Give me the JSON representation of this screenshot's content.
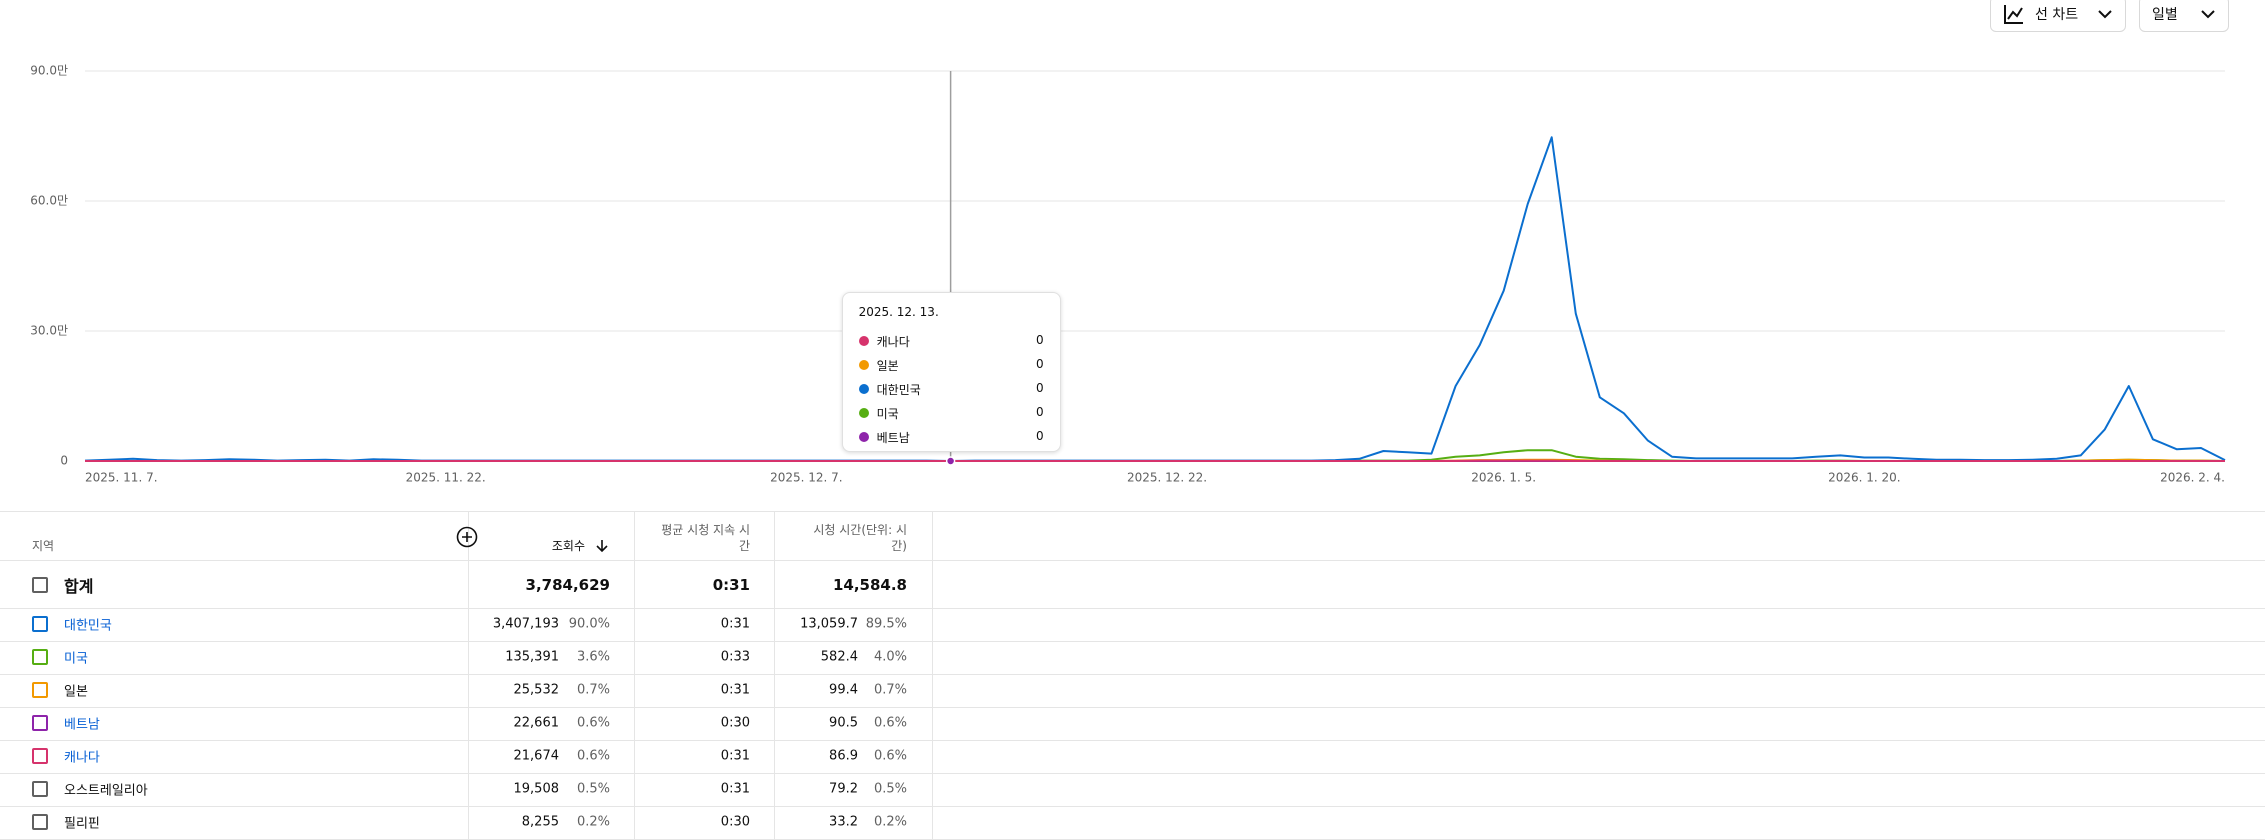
{
  "controls": {
    "chart_type": "선 차트",
    "period": "일별"
  },
  "chart_data": {
    "type": "line",
    "x": [
      "2025. 11. 7.",
      "2025. 11. 8.",
      "2025. 11. 9.",
      "2025. 11. 10.",
      "2025. 11. 11.",
      "2025. 11. 12.",
      "2025. 11. 13.",
      "2025. 11. 14.",
      "2025. 11. 15.",
      "2025. 11. 16.",
      "2025. 11. 17.",
      "2025. 11. 18.",
      "2025. 11. 19.",
      "2025. 11. 20.",
      "2025. 11. 21.",
      "2025. 11. 22.",
      "2025. 11. 23.",
      "2025. 11. 24.",
      "2025. 11. 25.",
      "2025. 11. 26.",
      "2025. 11. 27.",
      "2025. 11. 28.",
      "2025. 11. 29.",
      "2025. 11. 30.",
      "2025. 12. 1.",
      "2025. 12. 2.",
      "2025. 12. 3.",
      "2025. 12. 4.",
      "2025. 12. 5.",
      "2025. 12. 6.",
      "2025. 12. 7.",
      "2025. 12. 8.",
      "2025. 12. 9.",
      "2025. 12. 10.",
      "2025. 12. 11.",
      "2025. 12. 12.",
      "2025. 12. 13.",
      "2025. 12. 14.",
      "2025. 12. 15.",
      "2025. 12. 16.",
      "2025. 12. 17.",
      "2025. 12. 18.",
      "2025. 12. 19.",
      "2025. 12. 20.",
      "2025. 12. 21.",
      "2025. 12. 22.",
      "2025. 12. 23.",
      "2025. 12. 24.",
      "2025. 12. 25.",
      "2025. 12. 26.",
      "2025. 12. 27.",
      "2025. 12. 28.",
      "2025. 12. 29.",
      "2025. 12. 30.",
      "2025. 12. 31.",
      "2026. 1. 1.",
      "2026. 1. 2.",
      "2026. 1. 3.",
      "2026. 1. 4.",
      "2026. 1. 5.",
      "2026. 1. 6.",
      "2026. 1. 7.",
      "2026. 1. 8.",
      "2026. 1. 9.",
      "2026. 1. 10.",
      "2026. 1. 11.",
      "2026. 1. 12.",
      "2026. 1. 13.",
      "2026. 1. 14.",
      "2026. 1. 15.",
      "2026. 1. 16.",
      "2026. 1. 17.",
      "2026. 1. 18.",
      "2026. 1. 19.",
      "2026. 1. 20.",
      "2026. 1. 21.",
      "2026. 1. 22.",
      "2026. 1. 23.",
      "2026. 1. 24.",
      "2026. 1. 25.",
      "2026. 1. 26.",
      "2026. 1. 27.",
      "2026. 1. 28.",
      "2026. 1. 29.",
      "2026. 1. 30.",
      "2026. 1. 31.",
      "2026. 2. 1.",
      "2026. 2. 2.",
      "2026. 2. 3.",
      "2026. 2. 4."
    ],
    "xlim": [
      "2025. 11. 7.",
      "2026. 2. 4."
    ],
    "xticks": [
      "2025. 11. 7.",
      "2025. 11. 22.",
      "2025. 12. 7.",
      "2025. 12. 22.",
      "2026. 1. 5.",
      "2026. 1. 20.",
      "2026. 2. 4."
    ],
    "ylim": [
      0,
      90
    ],
    "yticks": [
      0,
      {
        "value": 30,
        "label": "30.0만"
      },
      {
        "value": 60,
        "label": "60.0만"
      },
      {
        "value": 90,
        "label": "90.0만"
      }
    ],
    "grid": true,
    "series": [
      {
        "name": "캐나다",
        "color": "#d6336c",
        "values": [
          0,
          0,
          0,
          0,
          0,
          0,
          0,
          0,
          0,
          0,
          0,
          0,
          0,
          0,
          0,
          0,
          0,
          0,
          0,
          0,
          0,
          0,
          0,
          0,
          0,
          0,
          0,
          0,
          0,
          0,
          0,
          0,
          0,
          0,
          0,
          0,
          0,
          0,
          0,
          0,
          0,
          0,
          0,
          0,
          0,
          0,
          0,
          0,
          0,
          0,
          0,
          0,
          0,
          0,
          0,
          0,
          0,
          0,
          0.1,
          0.1,
          0.1,
          0.1,
          0,
          0,
          0,
          0,
          0,
          0,
          0,
          0,
          0,
          0,
          0,
          0,
          0,
          0,
          0,
          0,
          0,
          0,
          0,
          0,
          0,
          0,
          0,
          0,
          0,
          0,
          0,
          0
        ]
      },
      {
        "name": "일본",
        "color": "#f29900",
        "values": [
          0,
          0,
          0,
          0,
          0,
          0,
          0,
          0,
          0,
          0,
          0,
          0,
          0,
          0,
          0,
          0,
          0,
          0,
          0,
          0,
          0,
          0,
          0,
          0,
          0,
          0,
          0,
          0,
          0,
          0,
          0,
          0,
          0,
          0,
          0,
          0,
          0,
          0,
          0,
          0,
          0,
          0,
          0,
          0,
          0,
          0,
          0,
          0,
          0,
          0,
          0,
          0,
          0,
          0,
          0,
          0,
          0,
          0.1,
          0.2,
          0.2,
          0.3,
          0.3,
          0.2,
          0.1,
          0,
          0,
          0,
          0,
          0,
          0,
          0,
          0,
          0,
          0,
          0,
          0,
          0,
          0,
          0,
          0,
          0,
          0,
          0,
          0.1,
          0.2,
          0.3,
          0.2,
          0.1,
          0.1,
          0
        ]
      },
      {
        "name": "대한민국",
        "color": "#0b6fcf",
        "values": [
          0.1,
          0.3,
          0.5,
          0.2,
          0.1,
          0.2,
          0.4,
          0.3,
          0.1,
          0.2,
          0.3,
          0.1,
          0.4,
          0.3,
          0.1,
          0.1,
          0.1,
          0.1,
          0.1,
          0.1,
          0.1,
          0.1,
          0.1,
          0.1,
          0.1,
          0.1,
          0.1,
          0.1,
          0.1,
          0.1,
          0.1,
          0.1,
          0.1,
          0.1,
          0.1,
          0.1,
          0,
          0.1,
          0.1,
          0.1,
          0.1,
          0.1,
          0.1,
          0.1,
          0.1,
          0.1,
          0.1,
          0.1,
          0.1,
          0.1,
          0.1,
          0.1,
          0.2,
          0.5,
          2.3,
          2.0,
          1.7,
          17.3,
          26.7,
          39.3,
          59.3,
          74.7,
          34.0,
          14.7,
          11.0,
          4.7,
          1.0,
          0.6,
          0.6,
          0.6,
          0.6,
          0.6,
          1.0,
          1.3,
          0.8,
          0.8,
          0.5,
          0.3,
          0.3,
          0.2,
          0.2,
          0.3,
          0.5,
          1.3,
          7.3,
          17.3,
          5.0,
          2.7,
          3.0,
          0.2
        ]
      },
      {
        "name": "미국",
        "color": "#56ae13",
        "values": [
          0,
          0,
          0,
          0,
          0,
          0,
          0,
          0,
          0,
          0,
          0,
          0,
          0,
          0,
          0,
          0,
          0,
          0,
          0,
          0,
          0,
          0,
          0,
          0,
          0,
          0,
          0,
          0,
          0,
          0,
          0,
          0,
          0,
          0,
          0,
          0,
          0,
          0,
          0,
          0,
          0,
          0,
          0,
          0,
          0,
          0,
          0,
          0,
          0,
          0,
          0,
          0,
          0,
          0.1,
          0.1,
          0.1,
          0.3,
          1.0,
          1.3,
          2.0,
          2.5,
          2.5,
          1.0,
          0.5,
          0.4,
          0.2,
          0.1,
          0,
          0,
          0,
          0,
          0,
          0.1,
          0.1,
          0,
          0,
          0,
          0,
          0,
          0,
          0,
          0,
          0,
          0.1,
          0.2,
          0.3,
          0.2,
          0.1,
          0.1,
          0
        ]
      },
      {
        "name": "베트남",
        "color": "#8e24aa",
        "values": [
          0,
          0,
          0,
          0,
          0,
          0,
          0,
          0,
          0,
          0,
          0,
          0,
          0,
          0,
          0,
          0,
          0,
          0,
          0,
          0,
          0,
          0,
          0,
          0,
          0,
          0,
          0,
          0,
          0,
          0,
          0,
          0,
          0,
          0,
          0,
          0,
          0,
          0,
          0,
          0,
          0,
          0,
          0,
          0,
          0,
          0,
          0,
          0,
          0,
          0,
          0,
          0,
          0,
          0,
          0,
          0,
          0,
          0,
          0,
          0,
          0,
          0,
          0,
          0,
          0,
          0,
          0,
          0,
          0,
          0,
          0,
          0,
          0,
          0,
          0,
          0,
          0,
          0,
          0,
          0,
          0,
          0,
          0,
          0,
          0,
          0,
          0,
          0,
          0,
          0
        ]
      }
    ],
    "tooltip": {
      "x": "2025. 12. 13."
    }
  },
  "table": {
    "headers": [
      "지역",
      "조회수",
      "평균 시청 지속 시간",
      "시청 시간(단위: 시간)"
    ],
    "total": {
      "name": "합계",
      "views": "3,784,629",
      "avg_duration": "0:31",
      "watch_time": "14,584.8"
    },
    "rows": [
      {
        "name": "대한민국",
        "views": "3,407,193",
        "views_share": "90.0%",
        "avg_duration": "0:31",
        "watch_time": "13,059.7",
        "watch_share": "89.5%",
        "color": "#0b6fcf",
        "link": true
      },
      {
        "name": "미국",
        "views": "135,391",
        "views_share": "3.6%",
        "avg_duration": "0:33",
        "watch_time": "582.4",
        "watch_share": "4.0%",
        "color": "#56ae13",
        "link": true
      },
      {
        "name": "일본",
        "views": "25,532",
        "views_share": "0.7%",
        "avg_duration": "0:31",
        "watch_time": "99.4",
        "watch_share": "0.7%",
        "color": "#f29900",
        "link": false
      },
      {
        "name": "베트남",
        "views": "22,661",
        "views_share": "0.6%",
        "avg_duration": "0:30",
        "watch_time": "90.5",
        "watch_share": "0.6%",
        "color": "#8e24aa",
        "link": true
      },
      {
        "name": "캐나다",
        "views": "21,674",
        "views_share": "0.6%",
        "avg_duration": "0:31",
        "watch_time": "86.9",
        "watch_share": "0.6%",
        "color": "#d6336c",
        "link": true
      },
      {
        "name": "오스트레일리아",
        "views": "19,508",
        "views_share": "0.5%",
        "avg_duration": "0:31",
        "watch_time": "79.2",
        "watch_share": "0.5%",
        "color": "#606060",
        "link": false
      },
      {
        "name": "필리핀",
        "views": "8,255",
        "views_share": "0.2%",
        "avg_duration": "0:30",
        "watch_time": "33.2",
        "watch_share": "0.2%",
        "color": "#606060",
        "link": false
      }
    ]
  }
}
